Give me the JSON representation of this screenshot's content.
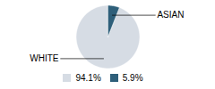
{
  "chart_data": {
    "type": "pie",
    "categories": [
      "WHITE",
      "ASIAN"
    ],
    "values": [
      94.1,
      5.9
    ],
    "value_labels": [
      "94.1%",
      "5.9%"
    ],
    "colors": [
      "#d6dce4",
      "#2e5f7a"
    ],
    "legend": "bottom"
  }
}
